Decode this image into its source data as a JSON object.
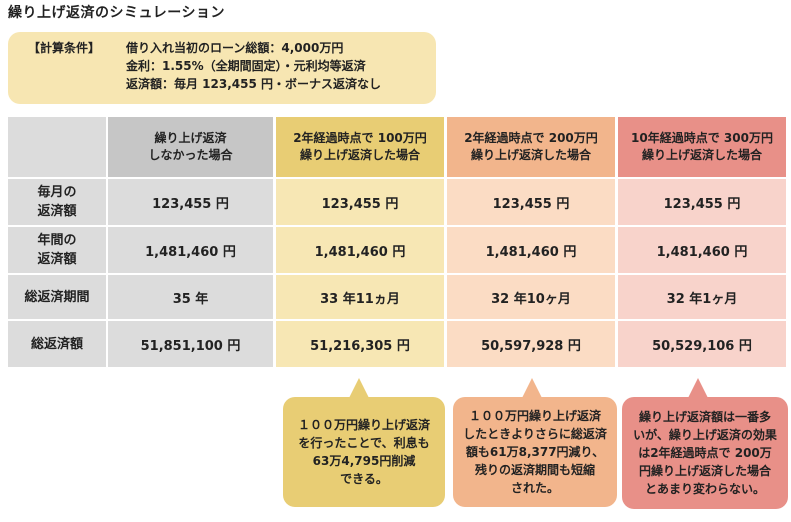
{
  "title": "繰り上げ返済のシミュレーション",
  "conditions": {
    "label": "【計算条件】",
    "line1": "借り入れ当初のローン総額：4,000万円",
    "line2": "金利：1.55%（全期間固定）・元利均等返済",
    "line3": "返済額：毎月 123,455 円・ボーナス返済なし"
  },
  "table": {
    "headers": [
      {
        "line1": "繰り上げ返済",
        "line2": "しなかった場合"
      },
      {
        "line1": "2年経過時点で 100万円",
        "line2": "繰り上げ返済した場合"
      },
      {
        "line1": "2年経過時点で 200万円",
        "line2": "繰り上げ返済した場合"
      },
      {
        "line1": "10年経過時点で 300万円",
        "line2": "繰り上げ返済した場合"
      }
    ],
    "rows": [
      {
        "label1": "毎月の",
        "label2": "返済額",
        "values": [
          "123,455 円",
          "123,455 円",
          "123,455 円",
          "123,455 円"
        ]
      },
      {
        "label1": "年間の",
        "label2": "返済額",
        "values": [
          "1,481,460 円",
          "1,481,460 円",
          "1,481,460 円",
          "1,481,460 円"
        ]
      },
      {
        "label1": "総返済期間",
        "label2": "",
        "values": [
          "35 年",
          "33 年11ヵ月",
          "32 年10ヶ月",
          "32 年1ヶ月"
        ]
      },
      {
        "label1": "総返済額",
        "label2": "",
        "values": [
          "51,851,100 円",
          "51,216,305 円",
          "50,597,928 円",
          "50,529,106 円"
        ]
      }
    ]
  },
  "notes": [
    {
      "l1": "１００万円繰り上げ返済",
      "l2": "を行ったことで、利息も",
      "l3": "63万4,795円削減",
      "l4": "できる。",
      "l5": ""
    },
    {
      "l1": "１００万円繰り上げ返済",
      "l2": "したときよりさらに総返済",
      "l3": "額も61万8,377円減り、",
      "l4": "残りの返済期間も短縮",
      "l5": "された。"
    },
    {
      "l1": "繰り上げ返済額は一番多",
      "l2": "いが、繰り上げ返済の効果",
      "l3": "は2年経過時点で 200万",
      "l4": "円繰り上げ返済した場合",
      "l5": "とあまり変わらない。"
    }
  ],
  "colors": {
    "gray": "#c6c6c6",
    "yellow": "#e8cd74",
    "peach": "#f2b58c",
    "pink": "#e89088"
  }
}
